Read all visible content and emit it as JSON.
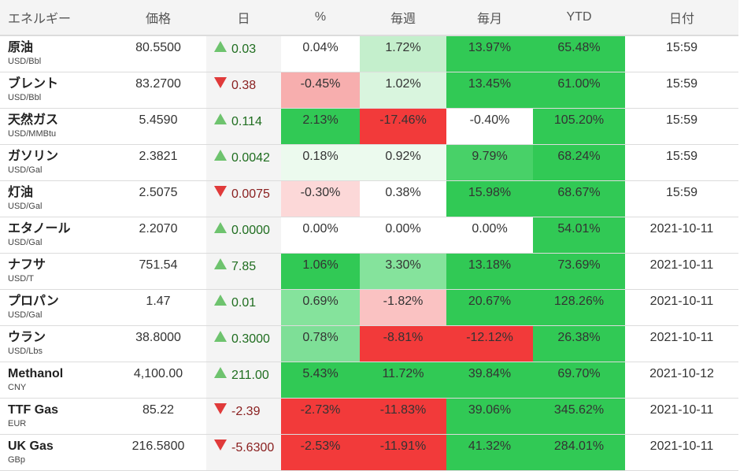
{
  "headers": [
    "エネルギー",
    "価格",
    "日",
    "%",
    "毎週",
    "毎月",
    "YTD",
    "日付"
  ],
  "rows": [
    {
      "name": "原油",
      "unit": "USD/Bbl",
      "price": "80.5500",
      "dir": "up",
      "change": "0.03",
      "pct": "0.04%",
      "weekly": "1.72%",
      "monthly": "13.97%",
      "ytd": "65.48%",
      "date": "15:59",
      "colors": {
        "pct": "#ffffff",
        "weekly": "#c4efcc",
        "monthly": "#31c955",
        "ytd": "#31c955"
      }
    },
    {
      "name": "ブレント",
      "unit": "USD/Bbl",
      "price": "83.2700",
      "dir": "down",
      "change": "0.38",
      "pct": "-0.45%",
      "weekly": "1.02%",
      "monthly": "13.45%",
      "ytd": "61.00%",
      "date": "15:59",
      "colors": {
        "pct": "#f7aeae",
        "weekly": "#d9f5de",
        "monthly": "#31c955",
        "ytd": "#31c955"
      }
    },
    {
      "name": "天然ガス",
      "unit": "USD/MMBtu",
      "price": "5.4590",
      "dir": "up",
      "change": "0.114",
      "pct": "2.13%",
      "weekly": "-17.46%",
      "monthly": "-0.40%",
      "ytd": "105.20%",
      "date": "15:59",
      "colors": {
        "pct": "#31c955",
        "weekly": "#f23a3a",
        "monthly": "#ffffff",
        "ytd": "#31c955"
      }
    },
    {
      "name": "ガソリン",
      "unit": "USD/Gal",
      "price": "2.3821",
      "dir": "up",
      "change": "0.0042",
      "pct": "0.18%",
      "weekly": "0.92%",
      "monthly": "9.79%",
      "ytd": "68.24%",
      "date": "15:59",
      "colors": {
        "pct": "#ecfaee",
        "weekly": "#ecfaee",
        "monthly": "#48d168",
        "ytd": "#31c955"
      }
    },
    {
      "name": "灯油",
      "unit": "USD/Gal",
      "price": "2.5075",
      "dir": "down",
      "change": "0.0075",
      "pct": "-0.30%",
      "weekly": "0.38%",
      "monthly": "15.98%",
      "ytd": "68.67%",
      "date": "15:59",
      "colors": {
        "pct": "#fcd8d8",
        "weekly": "#ffffff",
        "monthly": "#31c955",
        "ytd": "#31c955"
      }
    },
    {
      "name": "エタノール",
      "unit": "USD/Gal",
      "price": "2.2070",
      "dir": "up",
      "change": "0.0000",
      "pct": "0.00%",
      "weekly": "0.00%",
      "monthly": "0.00%",
      "ytd": "54.01%",
      "date": "2021-10-11",
      "colors": {
        "pct": "#ffffff",
        "weekly": "#ffffff",
        "monthly": "#ffffff",
        "ytd": "#31c955"
      }
    },
    {
      "name": "ナフサ",
      "unit": "USD/T",
      "price": "751.54",
      "dir": "up",
      "change": "7.85",
      "pct": "1.06%",
      "weekly": "3.30%",
      "monthly": "13.18%",
      "ytd": "73.69%",
      "date": "2021-10-11",
      "colors": {
        "pct": "#31c955",
        "weekly": "#85e39c",
        "monthly": "#31c955",
        "ytd": "#31c955"
      }
    },
    {
      "name": "プロパン",
      "unit": "USD/Gal",
      "price": "1.47",
      "dir": "up",
      "change": "0.01",
      "pct": "0.69%",
      "weekly": "-1.82%",
      "monthly": "20.67%",
      "ytd": "128.26%",
      "date": "2021-10-11",
      "colors": {
        "pct": "#85e39c",
        "weekly": "#fac2c2",
        "monthly": "#31c955",
        "ytd": "#31c955"
      }
    },
    {
      "name": "ウラン",
      "unit": "USD/Lbs",
      "price": "38.8000",
      "dir": "up",
      "change": "0.3000",
      "pct": "0.78%",
      "weekly": "-8.81%",
      "monthly": "-12.12%",
      "ytd": "26.38%",
      "date": "2021-10-11",
      "colors": {
        "pct": "#7edf97",
        "weekly": "#f23a3a",
        "monthly": "#f23a3a",
        "ytd": "#31c955"
      }
    },
    {
      "name": "Methanol",
      "unit": "CNY",
      "price": "4,100.00",
      "dir": "up",
      "change": "211.00",
      "pct": "5.43%",
      "weekly": "11.72%",
      "monthly": "39.84%",
      "ytd": "69.70%",
      "date": "2021-10-12",
      "colors": {
        "pct": "#31c955",
        "weekly": "#31c955",
        "monthly": "#31c955",
        "ytd": "#31c955"
      }
    },
    {
      "name": "TTF Gas",
      "unit": "EUR",
      "price": "85.22",
      "dir": "down",
      "change": "-2.39",
      "pct": "-2.73%",
      "weekly": "-11.83%",
      "monthly": "39.06%",
      "ytd": "345.62%",
      "date": "2021-10-11",
      "colors": {
        "pct": "#f23a3a",
        "weekly": "#f23a3a",
        "monthly": "#31c955",
        "ytd": "#31c955"
      }
    },
    {
      "name": "UK Gas",
      "unit": "GBp",
      "price": "216.5800",
      "dir": "down",
      "change": "-5.6300",
      "pct": "-2.53%",
      "weekly": "-11.91%",
      "monthly": "41.32%",
      "ytd": "284.01%",
      "date": "2021-10-11",
      "colors": {
        "pct": "#f23a3a",
        "weekly": "#f23a3a",
        "monthly": "#31c955",
        "ytd": "#31c955"
      }
    }
  ]
}
